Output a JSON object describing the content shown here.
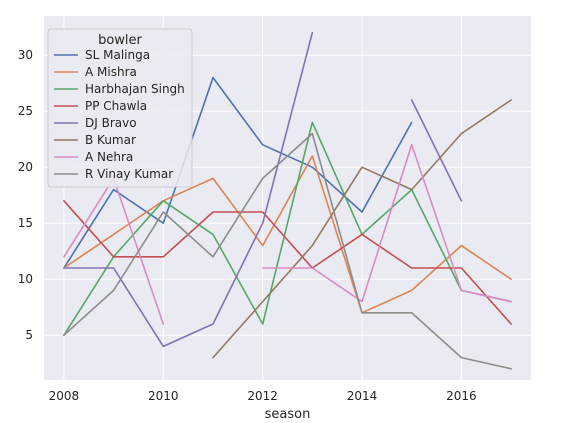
{
  "chart_data": {
    "type": "line",
    "xlabel": "season",
    "ylabel": "",
    "legend_title": "bowler",
    "legend_position": "top-left",
    "grid": true,
    "xlim": [
      2007.6,
      2017.4
    ],
    "ylim": [
      1.0,
      33.5
    ],
    "xticks": [
      2008,
      2010,
      2012,
      2014,
      2016
    ],
    "yticks": [
      5,
      10,
      15,
      20,
      25,
      30
    ],
    "colors": {
      "background": "#eaeaf2",
      "grid": "#ffffff"
    },
    "series": [
      {
        "name": "SL Malinga",
        "color": "#4c72b0",
        "points": [
          [
            2008,
            11
          ],
          [
            2009,
            18
          ],
          [
            2010,
            15
          ],
          [
            2011,
            28
          ],
          [
            2012,
            22
          ],
          [
            2013,
            20
          ],
          [
            2014,
            16
          ],
          [
            2015,
            24
          ]
        ]
      },
      {
        "name": "A Mishra",
        "color": "#dd8452",
        "points": [
          [
            2008,
            11
          ],
          [
            2009,
            14
          ],
          [
            2010,
            17
          ],
          [
            2011,
            19
          ],
          [
            2012,
            13
          ],
          [
            2013,
            21
          ],
          [
            2014,
            7
          ],
          [
            2015,
            9
          ],
          [
            2016,
            13
          ],
          [
            2017,
            10
          ]
        ]
      },
      {
        "name": "Harbhajan Singh",
        "color": "#55a868",
        "points": [
          [
            2008,
            5
          ],
          [
            2009,
            12
          ],
          [
            2010,
            17
          ],
          [
            2011,
            14
          ],
          [
            2012,
            6
          ],
          [
            2013,
            24
          ],
          [
            2014,
            14
          ],
          [
            2015,
            18
          ],
          [
            2016,
            9
          ],
          [
            2017,
            8
          ]
        ]
      },
      {
        "name": "PP Chawla",
        "color": "#c44e52",
        "points": [
          [
            2008,
            17
          ],
          [
            2009,
            12
          ],
          [
            2010,
            12
          ],
          [
            2011,
            16
          ],
          [
            2012,
            16
          ],
          [
            2013,
            11
          ],
          [
            2014,
            14
          ],
          [
            2015,
            11
          ],
          [
            2016,
            11
          ],
          [
            2017,
            6
          ]
        ]
      },
      {
        "name": "DJ Bravo",
        "color": "#8172b3",
        "points": [
          [
            2008,
            11
          ],
          [
            2009,
            11
          ],
          [
            2010,
            4
          ],
          [
            2011,
            6
          ],
          [
            2012,
            15
          ],
          [
            2013,
            32
          ]
        ],
        "points2": [
          [
            2015,
            26
          ],
          [
            2016,
            17
          ]
        ]
      },
      {
        "name": "B Kumar",
        "color": "#937860",
        "points": [
          [
            2011,
            3
          ],
          [
            2012,
            8
          ],
          [
            2013,
            13
          ],
          [
            2014,
            20
          ],
          [
            2015,
            18
          ],
          [
            2016,
            23
          ],
          [
            2017,
            26
          ]
        ]
      },
      {
        "name": "A Nehra",
        "color": "#da8bc3",
        "points": [
          [
            2008,
            12
          ],
          [
            2009,
            19
          ],
          [
            2010,
            6
          ]
        ],
        "points2": [
          [
            2012,
            11
          ],
          [
            2013,
            11
          ],
          [
            2014,
            8
          ],
          [
            2015,
            22
          ],
          [
            2016,
            9
          ],
          [
            2017,
            8
          ]
        ]
      },
      {
        "name": "R Vinay Kumar",
        "color": "#8c8c8c",
        "points": [
          [
            2008,
            5
          ],
          [
            2009,
            9
          ],
          [
            2010,
            16
          ],
          [
            2011,
            12
          ],
          [
            2012,
            19
          ],
          [
            2013,
            23
          ],
          [
            2014,
            7
          ],
          [
            2015,
            7
          ],
          [
            2016,
            3
          ],
          [
            2017,
            2
          ]
        ]
      }
    ]
  }
}
